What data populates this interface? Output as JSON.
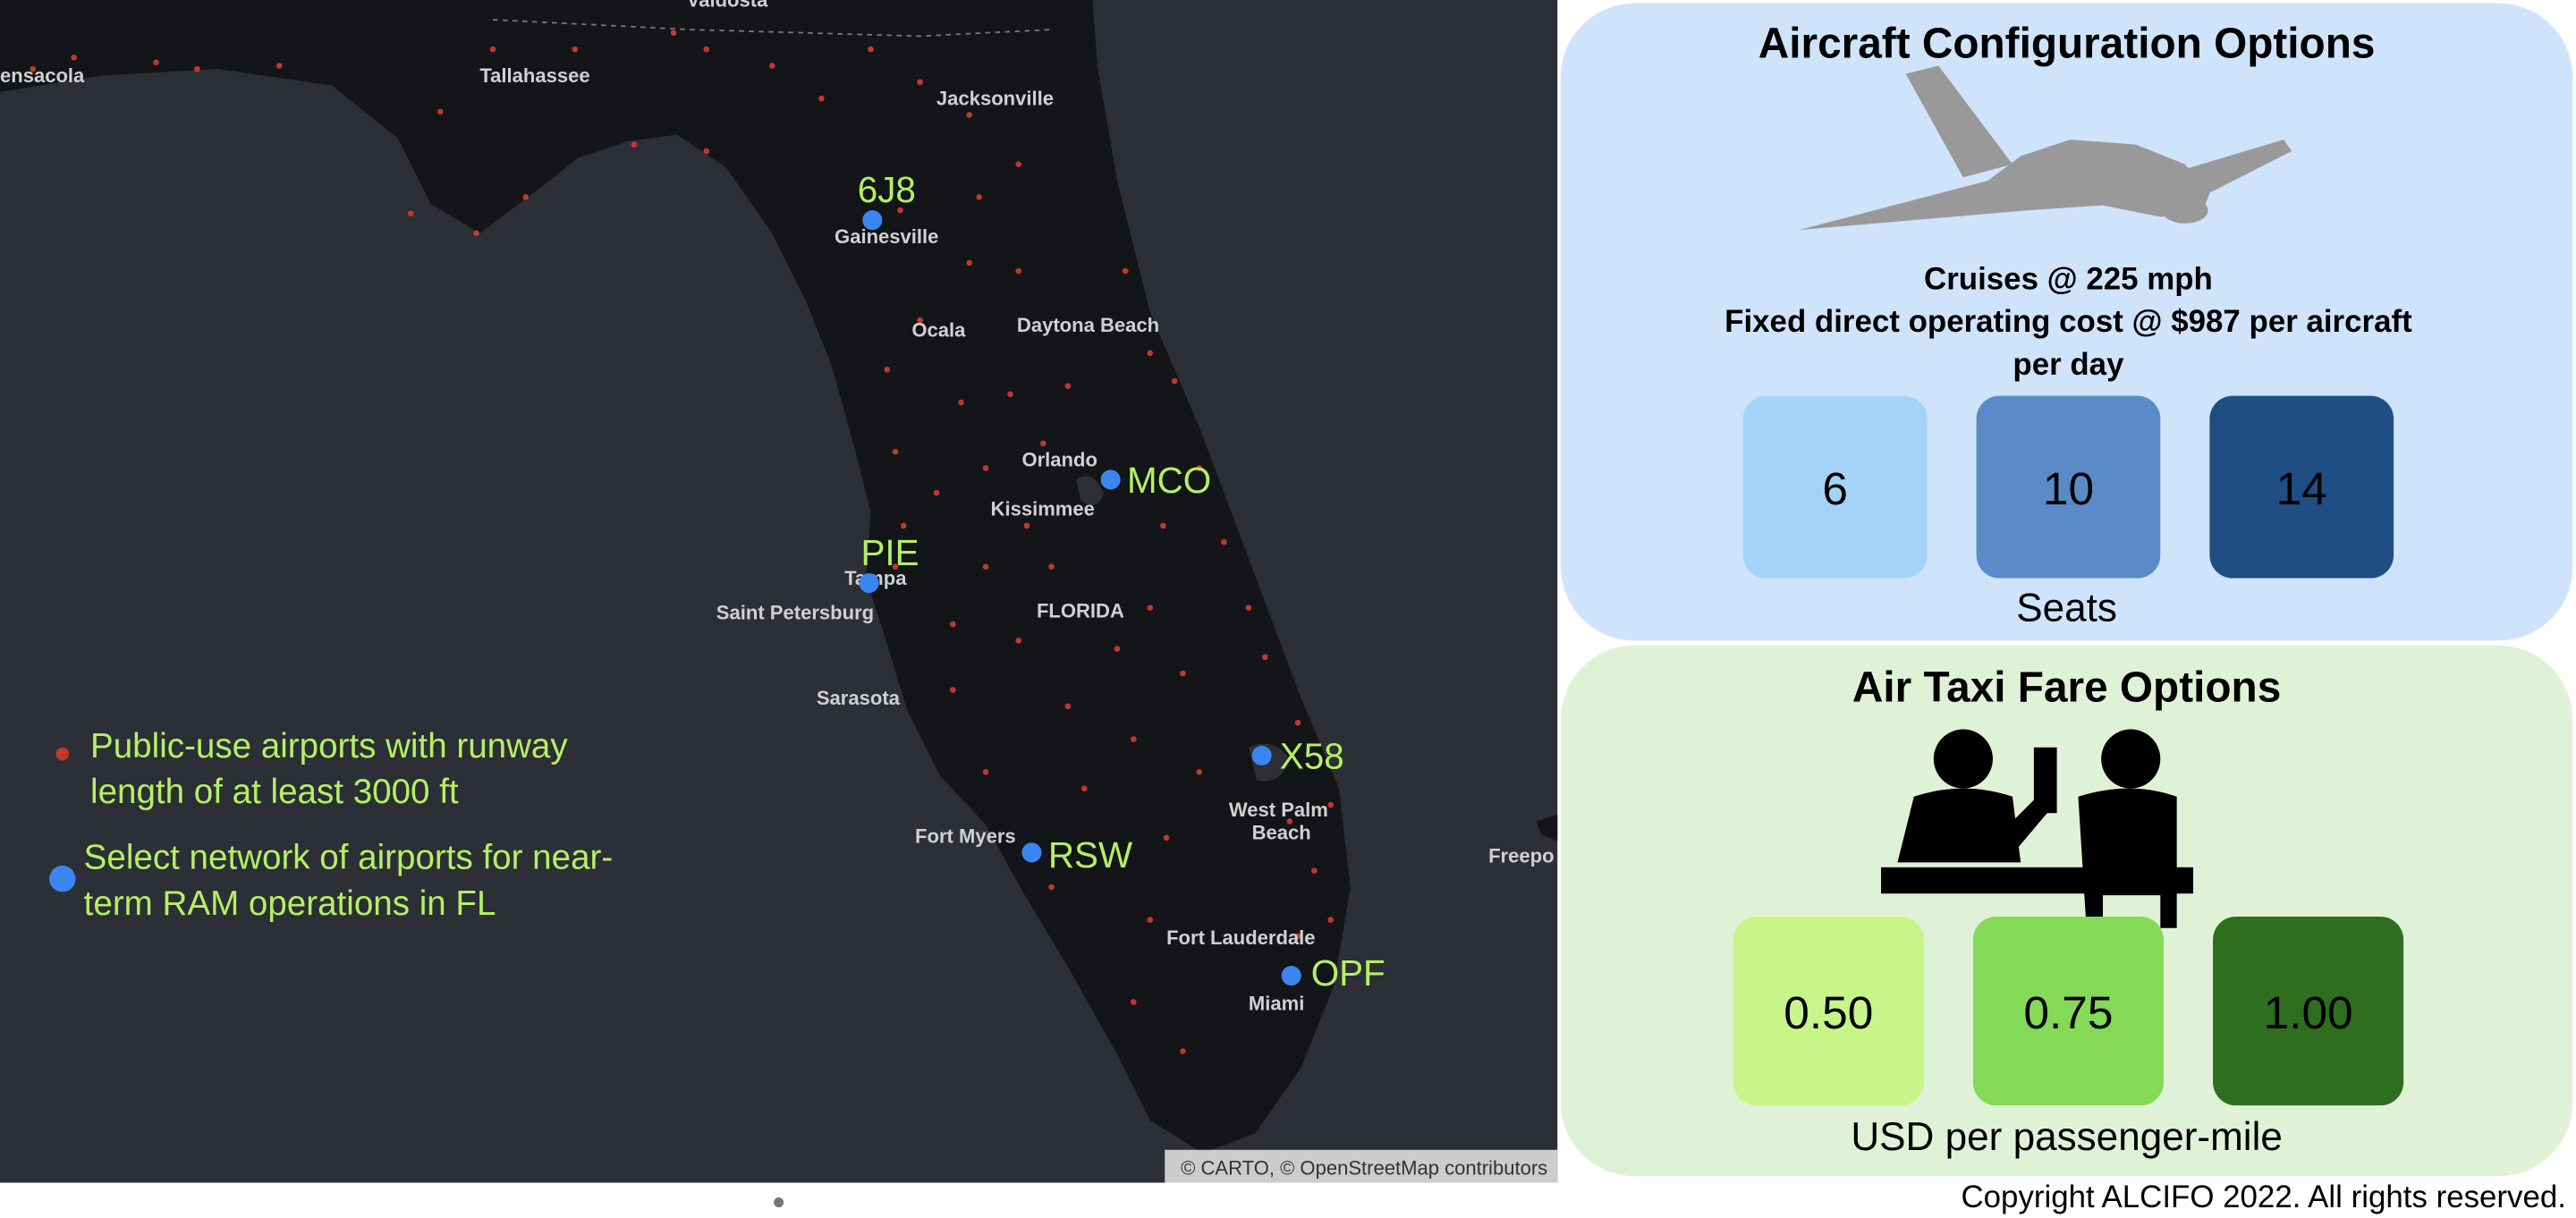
{
  "map": {
    "cities": [
      {
        "label": "ensacola"
      },
      {
        "label": "Tallahassee"
      },
      {
        "label": "Valdosta"
      },
      {
        "label": "Jacksonville"
      },
      {
        "label": "Gainesville"
      },
      {
        "label": "Ocala"
      },
      {
        "label": "Daytona Beach"
      },
      {
        "label": "Orlando"
      },
      {
        "label": "Kissimmee"
      },
      {
        "label": "Tampa"
      },
      {
        "label": "Saint Petersburg"
      },
      {
        "label": "FLORIDA"
      },
      {
        "label": "Sarasota"
      },
      {
        "label": "Fort Myers"
      },
      {
        "label": "West Palm"
      },
      {
        "label": "Beach"
      },
      {
        "label": "Fort Lauderdale"
      },
      {
        "label": "Miami"
      },
      {
        "label": "Freepo"
      }
    ],
    "network_airports": [
      {
        "label": "6J8"
      },
      {
        "label": "MCO"
      },
      {
        "label": "PIE"
      },
      {
        "label": "X58"
      },
      {
        "label": "RSW"
      },
      {
        "label": "OPF"
      }
    ],
    "legend": [
      {
        "lines": [
          "Public-use airports with runway",
          "length of at least 3000 ft"
        ]
      },
      {
        "lines": [
          "Select network of airports for near-",
          "term RAM operations in FL"
        ]
      }
    ],
    "attribution": "© CARTO, © OpenStreetMap contributors"
  },
  "aircraft_panel": {
    "title": "Aircraft Configuration Options",
    "lines": [
      "Cruises @ 225 mph",
      "Fixed direct operating cost @ $987 per aircraft",
      "per day"
    ],
    "options": [
      6,
      10,
      14
    ],
    "caption": "Seats"
  },
  "fare_panel": {
    "title": "Air Taxi Fare Options",
    "options": [
      "0.50",
      "0.75",
      "1.00"
    ],
    "caption": "USD per passenger-mile"
  },
  "footer": {
    "copyright": "Copyright ALCIFO 2022. All rights reserved."
  }
}
